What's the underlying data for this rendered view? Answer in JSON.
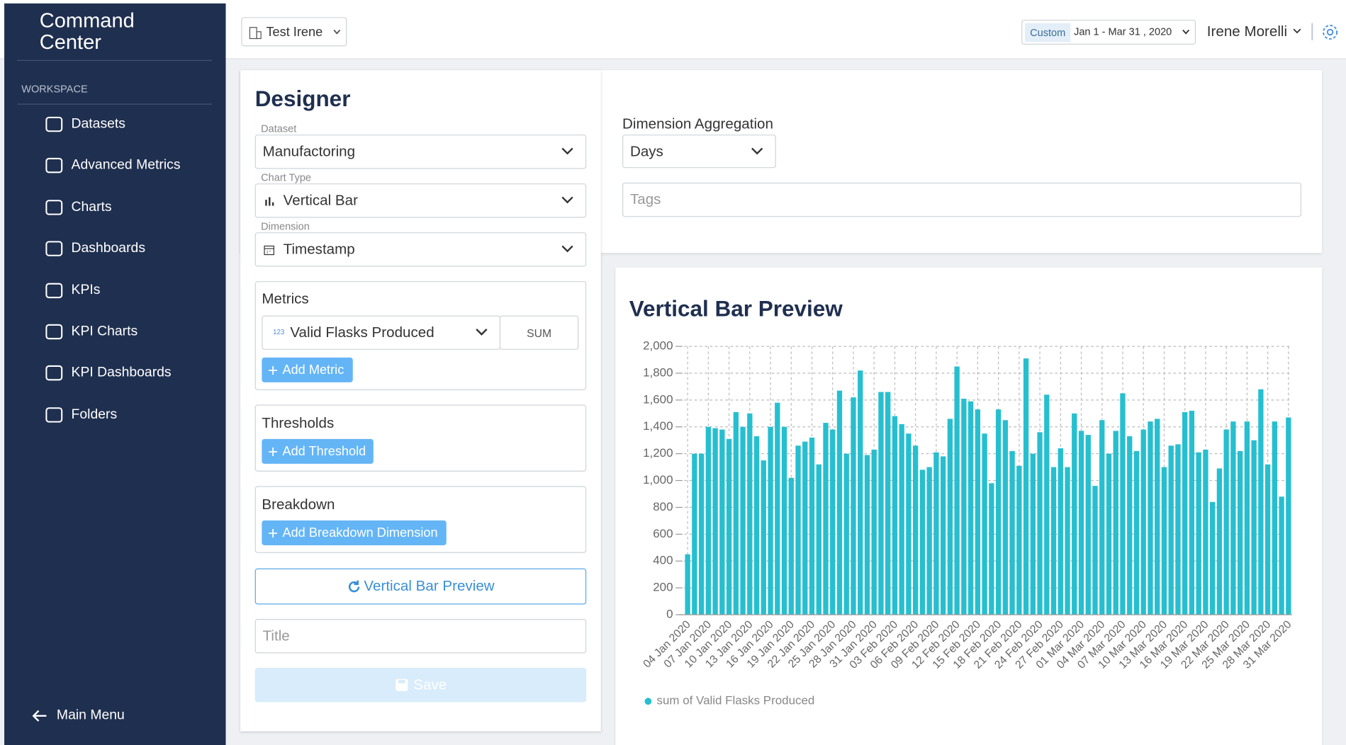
{
  "sidebar": {
    "title": "Command Center",
    "section": "WORKSPACE",
    "items": [
      "Datasets",
      "Advanced Metrics",
      "Charts",
      "Dashboards",
      "KPIs",
      "KPI Charts",
      "KPI Dashboards",
      "Folders"
    ],
    "footer": "Main Menu"
  },
  "header": {
    "workspace": "Test Irene",
    "date_badge": "Custom",
    "date_range": "Jan 1 - Mar 31 , 2020",
    "user": "Irene Morelli"
  },
  "designer": {
    "heading": "Designer",
    "dataset": {
      "label": "Dataset",
      "value": "Manufactoring"
    },
    "chart_type": {
      "label": "Chart Type",
      "value": "Vertical Bar"
    },
    "dimension": {
      "label": "Dimension",
      "value": "Timestamp"
    },
    "aggregation": {
      "label": "Dimension Aggregation",
      "value": "Days"
    },
    "tags_placeholder": "Tags",
    "metrics": {
      "title": "Metrics",
      "icon": "123",
      "metric": "Valid Flasks Produced",
      "function": "SUM",
      "button": "Add Metric"
    },
    "thresholds": {
      "title": "Thresholds",
      "button": "Add Threshold"
    },
    "breakdown": {
      "title": "Breakdown",
      "button": "Add Breakdown Dimension"
    },
    "preview_button": "Vertical Bar Preview",
    "title_placeholder": "Title",
    "save_button": "Save"
  },
  "chart_data": {
    "type": "bar",
    "title": "Vertical Bar Preview",
    "categories": [
      "04 Jan 2020",
      null,
      null,
      "07 Jan 2020",
      null,
      null,
      "10 Jan 2020",
      null,
      null,
      "13 Jan 2020",
      null,
      null,
      "16 Jan 2020",
      null,
      null,
      "19 Jan 2020",
      null,
      null,
      "22 Jan 2020",
      null,
      null,
      "25 Jan 2020",
      null,
      null,
      "28 Jan 2020",
      null,
      null,
      "31 Jan 2020",
      null,
      null,
      "03 Feb 2020",
      null,
      null,
      "06 Feb 2020",
      null,
      null,
      "09 Feb 2020",
      null,
      null,
      "12 Feb 2020",
      null,
      null,
      "15 Feb 2020",
      null,
      null,
      "18 Feb 2020",
      null,
      null,
      "21 Feb 2020",
      null,
      null,
      "24 Feb 2020",
      null,
      null,
      "27 Feb 2020",
      null,
      null,
      "01 Mar 2020",
      null,
      null,
      "04 Mar 2020",
      null,
      null,
      "07 Mar 2020",
      null,
      null,
      "10 Mar 2020",
      null,
      null,
      "13 Mar 2020",
      null,
      null,
      "16 Mar 2020",
      null,
      null,
      "19 Mar 2020",
      null,
      null,
      "22 Mar 2020",
      null,
      null,
      "25 Mar 2020",
      null,
      null,
      "28 Mar 2020",
      null,
      null,
      "31 Mar 2020"
    ],
    "series": [
      {
        "name": "sum of Valid Flasks Produced",
        "color": "#26bfd0",
        "values": [
          450,
          1200,
          1200,
          1400,
          1390,
          1380,
          1310,
          1510,
          1400,
          1500,
          1330,
          1150,
          1400,
          1580,
          1400,
          1020,
          1260,
          1290,
          1320,
          1120,
          1430,
          1380,
          1670,
          1200,
          1620,
          1820,
          1190,
          1230,
          1660,
          1660,
          1480,
          1420,
          1350,
          1260,
          1080,
          1100,
          1210,
          1180,
          1460,
          1850,
          1610,
          1590,
          1530,
          1350,
          980,
          1530,
          1450,
          1220,
          1110,
          1910,
          1200,
          1360,
          1640,
          1100,
          1240,
          1100,
          1500,
          1370,
          1340,
          960,
          1450,
          1200,
          1370,
          1650,
          1330,
          1220,
          1380,
          1440,
          1460,
          1100,
          1260,
          1270,
          1510,
          1520,
          1210,
          1230,
          840,
          1090,
          1380,
          1440,
          1220,
          1440,
          1300,
          1680,
          1120,
          1440,
          880,
          1470
        ]
      }
    ],
    "ylim": [
      0,
      2000
    ],
    "yticks": [
      0,
      200,
      400,
      600,
      800,
      {
        "value": 1000,
        "label": "1,000"
      },
      {
        "value": 1200,
        "label": "1,200"
      },
      {
        "value": 1400,
        "label": "1,400"
      },
      {
        "value": 1600,
        "label": "1,600"
      },
      {
        "value": 1800,
        "label": "1,800"
      },
      {
        "value": 2000,
        "label": "2,000"
      }
    ],
    "grid": true,
    "legend": "bottom-left"
  }
}
